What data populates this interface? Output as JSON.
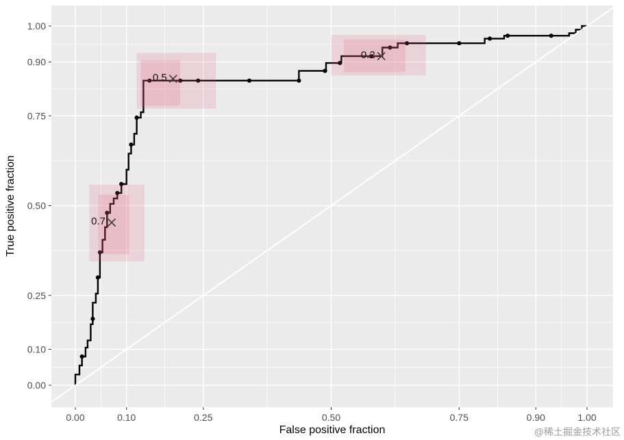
{
  "watermark": "@稀土掘金技术社区",
  "chart_data": {
    "type": "line",
    "subtype": "roc-step-curve",
    "title": "",
    "xlabel": "False positive fraction",
    "ylabel": "True positive fraction",
    "xlim": [
      0,
      1
    ],
    "ylim": [
      0,
      1
    ],
    "grid": true,
    "legend": false,
    "panel_bg": "#EBEBEB",
    "grid_color": "#FFFFFF",
    "curve_color": "#000000",
    "diagonal_color": "#FFFFFF",
    "region_color": "#E05A7A",
    "tick_color": "#333333",
    "x_ticks": [
      {
        "v": 0.0,
        "label": "0.00"
      },
      {
        "v": 0.1,
        "label": "0.10"
      },
      {
        "v": 0.25,
        "label": "0.25"
      },
      {
        "v": 0.5,
        "label": "0.50"
      },
      {
        "v": 0.75,
        "label": "0.75"
      },
      {
        "v": 0.9,
        "label": "0.90"
      },
      {
        "v": 1.0,
        "label": "1.00"
      }
    ],
    "y_ticks": [
      {
        "v": 0.0,
        "label": "0.00"
      },
      {
        "v": 0.1,
        "label": "0.10"
      },
      {
        "v": 0.25,
        "label": "0.25"
      },
      {
        "v": 0.5,
        "label": "0.50"
      },
      {
        "v": 0.75,
        "label": "0.75"
      },
      {
        "v": 0.9,
        "label": "0.90"
      },
      {
        "v": 1.0,
        "label": "1.00"
      }
    ],
    "minor_ticks_x": [
      0.05,
      0.175,
      0.375,
      0.625,
      0.825,
      0.95
    ],
    "minor_ticks_y": [
      0.05,
      0.175,
      0.375,
      0.625,
      0.825,
      0.95
    ],
    "diagonal": {
      "from": [
        0,
        0
      ],
      "to": [
        1,
        1
      ]
    },
    "roc_curve": [
      [
        0.0,
        0.0
      ],
      [
        0.0,
        0.03
      ],
      [
        0.008,
        0.03
      ],
      [
        0.008,
        0.055
      ],
      [
        0.013,
        0.055
      ],
      [
        0.013,
        0.08
      ],
      [
        0.02,
        0.08
      ],
      [
        0.02,
        0.105
      ],
      [
        0.024,
        0.105
      ],
      [
        0.024,
        0.125
      ],
      [
        0.03,
        0.125
      ],
      [
        0.03,
        0.17
      ],
      [
        0.034,
        0.17
      ],
      [
        0.034,
        0.23
      ],
      [
        0.04,
        0.23
      ],
      [
        0.04,
        0.255
      ],
      [
        0.044,
        0.255
      ],
      [
        0.044,
        0.3
      ],
      [
        0.048,
        0.3
      ],
      [
        0.048,
        0.37
      ],
      [
        0.053,
        0.37
      ],
      [
        0.053,
        0.405
      ],
      [
        0.058,
        0.405
      ],
      [
        0.058,
        0.44
      ],
      [
        0.062,
        0.44
      ],
      [
        0.062,
        0.48
      ],
      [
        0.068,
        0.48
      ],
      [
        0.068,
        0.505
      ],
      [
        0.075,
        0.505
      ],
      [
        0.075,
        0.52
      ],
      [
        0.082,
        0.52
      ],
      [
        0.082,
        0.535
      ],
      [
        0.09,
        0.535
      ],
      [
        0.09,
        0.56
      ],
      [
        0.1,
        0.56
      ],
      [
        0.1,
        0.6
      ],
      [
        0.104,
        0.6
      ],
      [
        0.104,
        0.645
      ],
      [
        0.109,
        0.645
      ],
      [
        0.109,
        0.67
      ],
      [
        0.115,
        0.67
      ],
      [
        0.115,
        0.7
      ],
      [
        0.12,
        0.7
      ],
      [
        0.12,
        0.745
      ],
      [
        0.128,
        0.745
      ],
      [
        0.128,
        0.76
      ],
      [
        0.133,
        0.76
      ],
      [
        0.133,
        0.848
      ],
      [
        0.437,
        0.848
      ],
      [
        0.437,
        0.875
      ],
      [
        0.49,
        0.875
      ],
      [
        0.49,
        0.897
      ],
      [
        0.52,
        0.897
      ],
      [
        0.52,
        0.916
      ],
      [
        0.6,
        0.916
      ],
      [
        0.6,
        0.94
      ],
      [
        0.63,
        0.94
      ],
      [
        0.63,
        0.952
      ],
      [
        0.8,
        0.952
      ],
      [
        0.8,
        0.965
      ],
      [
        0.838,
        0.965
      ],
      [
        0.838,
        0.973
      ],
      [
        0.965,
        0.973
      ],
      [
        0.965,
        0.98
      ],
      [
        0.978,
        0.98
      ],
      [
        0.978,
        0.99
      ],
      [
        0.99,
        0.99
      ],
      [
        0.99,
        1.0
      ],
      [
        1.0,
        1.0
      ]
    ],
    "marked_points": [
      [
        0.013,
        0.08
      ],
      [
        0.034,
        0.185
      ],
      [
        0.044,
        0.3
      ],
      [
        0.048,
        0.37
      ],
      [
        0.062,
        0.48
      ],
      [
        0.082,
        0.535
      ],
      [
        0.09,
        0.56
      ],
      [
        0.109,
        0.67
      ],
      [
        0.12,
        0.745
      ],
      [
        0.145,
        0.848
      ],
      [
        0.205,
        0.848
      ],
      [
        0.24,
        0.848
      ],
      [
        0.34,
        0.848
      ],
      [
        0.437,
        0.848
      ],
      [
        0.488,
        0.875
      ],
      [
        0.517,
        0.897
      ],
      [
        0.578,
        0.916
      ],
      [
        0.615,
        0.94
      ],
      [
        0.648,
        0.952
      ],
      [
        0.75,
        0.952
      ],
      [
        0.81,
        0.965
      ],
      [
        0.845,
        0.973
      ],
      [
        0.93,
        0.973
      ]
    ],
    "thresholds": [
      {
        "label": "0.7",
        "point": [
          0.071,
          0.453
        ],
        "region": [
          0.027,
          0.345,
          0.135,
          0.558
        ],
        "inner_region": [
          0.045,
          0.365,
          0.105,
          0.53
        ]
      },
      {
        "label": "0.5",
        "point": [
          0.191,
          0.853
        ],
        "region": [
          0.12,
          0.77,
          0.275,
          0.925
        ],
        "inner_region": [
          0.128,
          0.778,
          0.205,
          0.905
        ]
      },
      {
        "label": "0.2",
        "point": [
          0.598,
          0.916
        ],
        "region": [
          0.5,
          0.862,
          0.685,
          0.975
        ],
        "inner_region": [
          0.525,
          0.872,
          0.645,
          0.962
        ]
      }
    ]
  }
}
